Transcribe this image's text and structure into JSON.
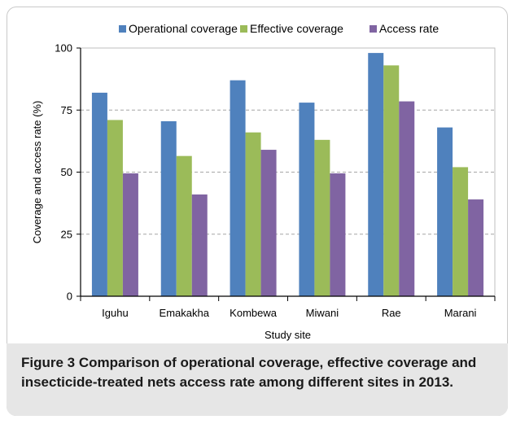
{
  "caption": {
    "figure_label": "Figure 3",
    "text": "Comparison of operational coverage, effective coverage and insecticide-treated nets access rate among different sites in 2013."
  },
  "chart_data": {
    "type": "bar",
    "title": "",
    "xlabel": "Study site",
    "ylabel": "Coverage and access rate (%)",
    "ylim": [
      0,
      100
    ],
    "yticks": [
      0,
      25,
      50,
      75,
      100
    ],
    "grid": true,
    "legend_position": "top",
    "categories": [
      "Iguhu",
      "Emakakha",
      "Kombewa",
      "Miwani",
      "Rae",
      "Marani"
    ],
    "series": [
      {
        "name": "Operational coverage",
        "color": "#4f81bd",
        "values": [
          82,
          70.5,
          87,
          78,
          98,
          68
        ]
      },
      {
        "name": "Effective coverage",
        "color": "#9bbb59",
        "values": [
          71,
          56.5,
          66,
          63,
          93,
          52
        ]
      },
      {
        "name": "Access rate",
        "color": "#8064a2",
        "values": [
          49.5,
          41,
          59,
          49.5,
          78.5,
          39
        ]
      }
    ]
  }
}
